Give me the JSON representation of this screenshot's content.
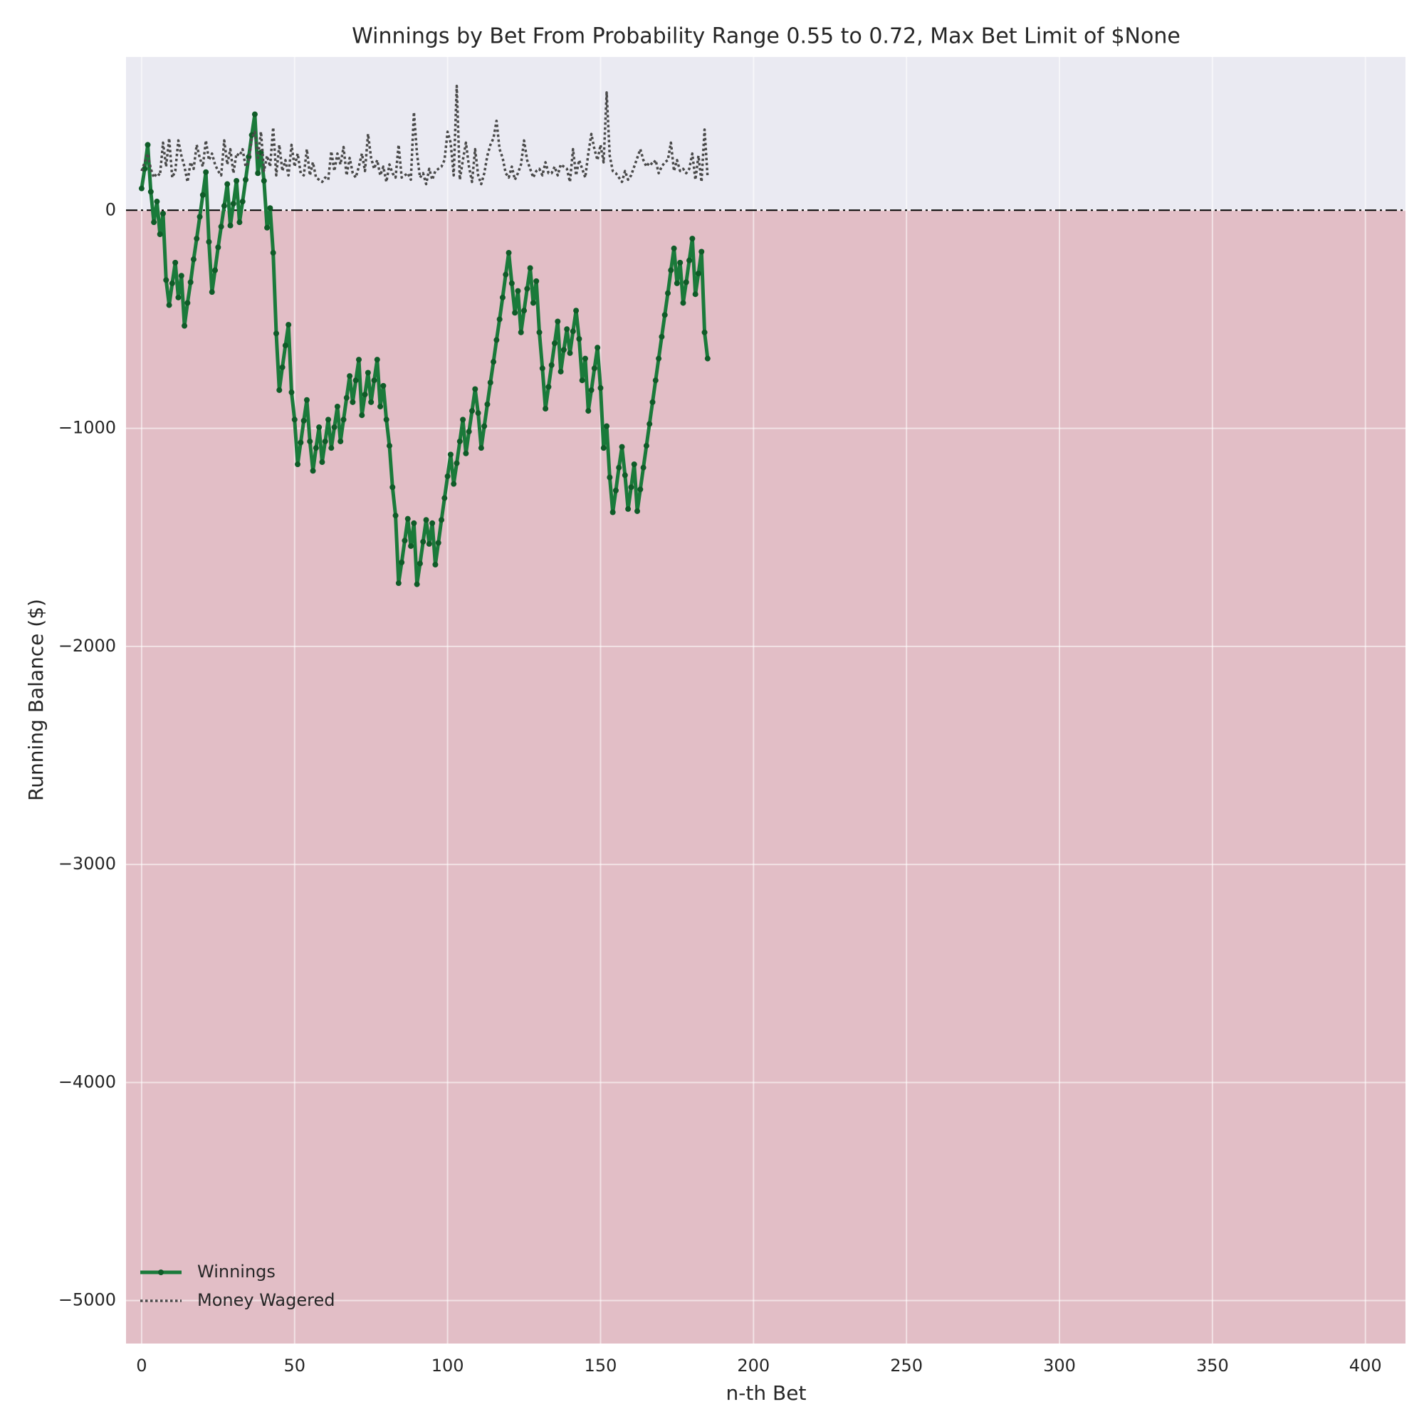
{
  "chart_data": {
    "type": "line",
    "title": "Winnings by Bet From Probability Range 0.55 to 0.72, Max Bet Limit of $None",
    "x_label": "n-th Bet",
    "y_label": "Running Balance ($)",
    "xlim": [
      -5.1,
      413.1
    ],
    "ylim": [
      -5197,
      703
    ],
    "xticks": [
      0,
      50,
      100,
      150,
      200,
      250,
      300,
      350,
      400
    ],
    "yticks": [
      {
        "value": -5000,
        "label": "−5000"
      },
      {
        "value": -4000,
        "label": "−4000"
      },
      {
        "value": -3000,
        "label": "−3000"
      },
      {
        "value": -2000,
        "label": "−2000"
      },
      {
        "value": -1000,
        "label": "−1000"
      },
      0
    ],
    "grid": true,
    "legend": "lower left",
    "background_color": "#eaeaf2",
    "loss_fill_color": "#e2bec6",
    "reference_line": 0,
    "x": [
      0,
      1,
      2,
      3,
      4,
      5,
      6,
      7,
      8,
      9,
      10,
      11,
      12,
      13,
      14,
      15,
      16,
      17,
      18,
      19,
      20,
      21,
      22,
      23,
      24,
      25,
      26,
      27,
      28,
      29,
      30,
      31,
      32,
      33,
      34,
      35,
      36,
      37,
      38,
      39,
      40,
      41,
      42,
      43,
      44,
      45,
      46,
      47,
      48,
      49,
      50,
      51,
      52,
      53,
      54,
      55,
      56,
      57,
      58,
      59,
      60,
      61,
      62,
      63,
      64,
      65,
      66,
      67,
      68,
      69,
      70,
      71,
      72,
      73,
      74,
      75,
      76,
      77,
      78,
      79,
      80,
      81,
      82,
      83,
      84,
      85,
      86,
      87,
      88,
      89,
      90,
      91,
      92,
      93,
      94,
      95,
      96,
      97,
      98,
      99,
      100,
      101,
      102,
      103,
      104,
      105,
      106,
      107,
      108,
      109,
      110,
      111,
      112,
      113,
      114,
      115,
      116,
      117,
      118,
      119,
      120,
      121,
      122,
      123,
      124,
      125,
      126,
      127,
      128,
      129,
      130,
      131,
      132,
      133,
      134,
      135,
      136,
      137,
      138,
      139,
      140,
      141,
      142,
      143,
      144,
      145,
      146,
      147,
      148,
      149,
      150,
      151,
      152,
      153,
      154,
      155,
      156,
      157,
      158,
      159,
      160,
      161,
      162,
      163,
      164,
      165,
      166,
      167,
      168,
      169,
      170,
      171,
      172,
      173,
      174,
      175,
      176,
      177,
      178,
      179,
      180,
      181,
      182,
      183,
      184,
      185
    ],
    "series": [
      {
        "name": "Winnings",
        "color": "#1a7a3a",
        "marker_color": "#0f5c28",
        "style": "solid-marker",
        "values": [
          100,
          190,
          300,
          85,
          -55,
          40,
          -110,
          -15,
          -320,
          -435,
          -335,
          -240,
          -400,
          -300,
          -530,
          -425,
          -330,
          -225,
          -130,
          -30,
          70,
          175,
          -145,
          -375,
          -275,
          -170,
          -75,
          20,
          120,
          -70,
          30,
          135,
          -55,
          40,
          140,
          245,
          345,
          440,
          170,
          265,
          135,
          -80,
          10,
          -195,
          -565,
          -825,
          -720,
          -620,
          -525,
          -835,
          -960,
          -1165,
          -1065,
          -965,
          -870,
          -1060,
          -1195,
          -1090,
          -995,
          -1155,
          -1060,
          -960,
          -1090,
          -995,
          -900,
          -1060,
          -960,
          -860,
          -760,
          -880,
          -780,
          -685,
          -940,
          -845,
          -745,
          -880,
          -780,
          -685,
          -900,
          -805,
          -960,
          -1080,
          -1270,
          -1400,
          -1710,
          -1615,
          -1515,
          -1415,
          -1540,
          -1435,
          -1715,
          -1620,
          -1520,
          -1420,
          -1530,
          -1435,
          -1625,
          -1525,
          -1420,
          -1320,
          -1220,
          -1120,
          -1255,
          -1160,
          -1060,
          -960,
          -1115,
          -1015,
          -920,
          -820,
          -930,
          -1090,
          -990,
          -890,
          -790,
          -695,
          -595,
          -500,
          -400,
          -295,
          -195,
          -335,
          -470,
          -370,
          -560,
          -460,
          -360,
          -265,
          -425,
          -325,
          -560,
          -725,
          -910,
          -810,
          -710,
          -610,
          -510,
          -740,
          -640,
          -545,
          -655,
          -555,
          -460,
          -590,
          -780,
          -680,
          -920,
          -825,
          -725,
          -630,
          -815,
          -1090,
          -990,
          -1225,
          -1385,
          -1285,
          -1180,
          -1085,
          -1215,
          -1370,
          -1270,
          -1165,
          -1380,
          -1280,
          -1180,
          -1080,
          -980,
          -880,
          -780,
          -680,
          -580,
          -480,
          -380,
          -275,
          -175,
          -335,
          -240,
          -425,
          -330,
          -230,
          -130,
          -385,
          -290,
          -190,
          -560,
          -680
        ]
      },
      {
        "name": "Money Wagered",
        "color": "#4a4a4a",
        "style": "dotted",
        "values": [
          180,
          220,
          260,
          190,
          150,
          170,
          160,
          310,
          200,
          330,
          150,
          180,
          320,
          250,
          200,
          130,
          220,
          190,
          300,
          240,
          200,
          320,
          230,
          260,
          210,
          180,
          160,
          320,
          210,
          280,
          170,
          260,
          250,
          280,
          200,
          220,
          330,
          360,
          240,
          360,
          180,
          250,
          200,
          380,
          160,
          300,
          180,
          230,
          160,
          300,
          200,
          260,
          170,
          160,
          280,
          160,
          220,
          150,
          140,
          130,
          150,
          140,
          270,
          180,
          260,
          210,
          290,
          160,
          240,
          170,
          150,
          200,
          260,
          180,
          350,
          240,
          190,
          230,
          160,
          200,
          130,
          210,
          170,
          150,
          300,
          150,
          160,
          170,
          140,
          450,
          260,
          150,
          170,
          120,
          190,
          140,
          180,
          190,
          200,
          230,
          360,
          310,
          160,
          570,
          140,
          230,
          310,
          200,
          130,
          280,
          160,
          120,
          170,
          250,
          300,
          330,
          410,
          280,
          240,
          170,
          150,
          200,
          140,
          170,
          210,
          320,
          230,
          190,
          150,
          180,
          190,
          160,
          220,
          170,
          170,
          200,
          160,
          210,
          200,
          190,
          130,
          280,
          160,
          230,
          190,
          150,
          260,
          350,
          280,
          230,
          300,
          220,
          540,
          250,
          180,
          170,
          150,
          130,
          180,
          140,
          160,
          200,
          240,
          280,
          230,
          200,
          220,
          210,
          230,
          170,
          200,
          220,
          230,
          310,
          180,
          230,
          180,
          190,
          170,
          190,
          260,
          140,
          250,
          130,
          370,
          150
        ]
      }
    ]
  }
}
